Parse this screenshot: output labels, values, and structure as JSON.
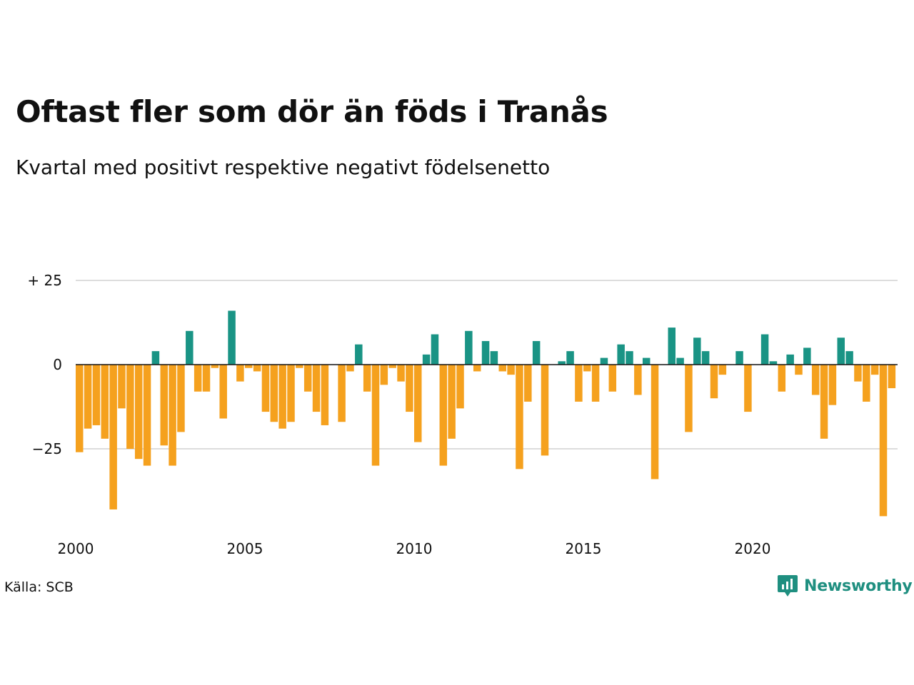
{
  "header": {
    "title": "Oftast fler som dör än föds i Tranås",
    "subtitle": "Kvartal med positivt respektive negativt födelsenetto"
  },
  "footer": {
    "source": "Källa: SCB",
    "brand": "Newsworthy",
    "brand_icon": "bar-chart-speech-bubble-icon"
  },
  "colors": {
    "positive": "#1a9485",
    "negative": "#f5a11e",
    "grid": "#dddddd",
    "zero_line": "#111111"
  },
  "chart_data": {
    "type": "bar",
    "title": "Oftast fler som dör än föds i Tranås",
    "subtitle": "Kvartal med positivt respektive negativt födelsenetto",
    "xlabel": "",
    "ylabel": "",
    "ylim": [
      -45,
      25
    ],
    "y_ticks": [
      {
        "value": 25,
        "label": "+ 25"
      },
      {
        "value": 0,
        "label": "0"
      },
      {
        "value": -25,
        "label": "−25"
      }
    ],
    "x_ticks": [
      {
        "year": 2000,
        "label": "2000"
      },
      {
        "year": 2005,
        "label": "2005"
      },
      {
        "year": 2010,
        "label": "2010"
      },
      {
        "year": 2015,
        "label": "2015"
      },
      {
        "year": 2020,
        "label": "2020"
      }
    ],
    "start": "2000 Q1",
    "grid": true,
    "legend": "none",
    "values": [
      -26,
      -19,
      -18,
      -22,
      -43,
      -13,
      -25,
      -28,
      -30,
      4,
      -24,
      -30,
      -20,
      10,
      -8,
      -8,
      -1,
      -16,
      16,
      -5,
      -1,
      -2,
      -14,
      -17,
      -19,
      -17,
      -1,
      -8,
      -14,
      -18,
      0,
      -17,
      -2,
      6,
      -8,
      -30,
      -6,
      -1,
      -5,
      -14,
      -23,
      3,
      9,
      -30,
      -22,
      -13,
      10,
      -2,
      7,
      4,
      -2,
      -3,
      -31,
      -11,
      7,
      -27,
      0,
      1,
      4,
      -11,
      -2,
      -11,
      2,
      -8,
      6,
      4,
      -9,
      2,
      -34,
      0,
      11,
      2,
      -20,
      8,
      4,
      -10,
      -3,
      0,
      4,
      -14,
      0,
      9,
      1,
      -8,
      3,
      -3,
      5,
      -9,
      -22,
      -12,
      8,
      4,
      -5,
      -11,
      -3,
      -45,
      -7
    ]
  }
}
